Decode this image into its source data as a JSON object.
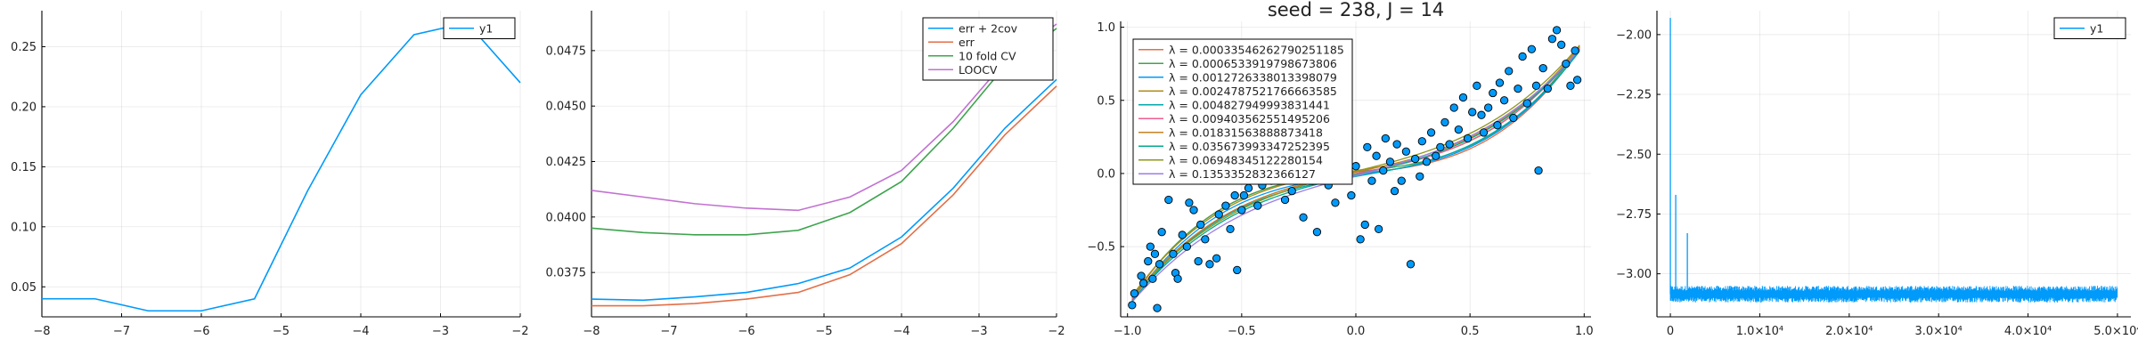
{
  "chart_data": [
    {
      "type": "line",
      "xlim": [
        -8,
        -2
      ],
      "ylim": [
        0.025,
        0.28
      ],
      "xticks": [
        -8,
        -7,
        -6,
        -5,
        -4,
        -3,
        -2
      ],
      "xtick_labels": [
        "−8",
        "−7",
        "−6",
        "−5",
        "−4",
        "−3",
        "−2"
      ],
      "yticks": [
        0.05,
        0.1,
        0.15,
        0.2,
        0.25
      ],
      "ytick_labels": [
        "0.05",
        "0.10",
        "0.15",
        "0.20",
        "0.25"
      ],
      "grid": true,
      "legend": "top-right",
      "series": [
        {
          "name": "y1",
          "color": "#009AFA",
          "x": [
            -8,
            -7.333,
            -6.667,
            -6,
            -5.333,
            -4.667,
            -4,
            -3.333,
            -2.667,
            -2
          ],
          "y": [
            0.04,
            0.04,
            0.03,
            0.03,
            0.04,
            0.13,
            0.21,
            0.26,
            0.27,
            0.22
          ]
        }
      ]
    },
    {
      "type": "line",
      "xlim": [
        -8,
        -2
      ],
      "ylim": [
        0.0355,
        0.0493
      ],
      "xticks": [
        -8,
        -7,
        -6,
        -5,
        -4,
        -3,
        -2
      ],
      "xtick_labels": [
        "−8",
        "−7",
        "−6",
        "−5",
        "−4",
        "−3",
        "−2"
      ],
      "yticks": [
        0.0375,
        0.04,
        0.0425,
        0.045,
        0.0475
      ],
      "ytick_labels": [
        "0.0375",
        "0.0400",
        "0.0425",
        "0.0450",
        "0.0475"
      ],
      "grid": true,
      "legend": "top-right",
      "x": [
        -8,
        -7.333,
        -6.667,
        -6,
        -5.333,
        -4.667,
        -4,
        -3.333,
        -2.667,
        -2
      ],
      "series": [
        {
          "name": "err + 2cov",
          "color": "#009AFA",
          "values": [
            0.0363,
            0.03625,
            0.0364,
            0.0366,
            0.037,
            0.0377,
            0.0391,
            0.0413,
            0.044,
            0.0462
          ]
        },
        {
          "name": "err",
          "color": "#E36F47",
          "values": [
            0.036,
            0.036,
            0.0361,
            0.0363,
            0.0366,
            0.0374,
            0.0388,
            0.041,
            0.0437,
            0.0459
          ]
        },
        {
          "name": "10 fold CV",
          "color": "#3EA44E",
          "values": [
            0.0395,
            0.0393,
            0.0392,
            0.0392,
            0.0394,
            0.0402,
            0.0416,
            0.044,
            0.0468,
            0.0485
          ]
        },
        {
          "name": "LOOCV",
          "color": "#C271D2",
          "values": [
            0.0412,
            0.0409,
            0.0406,
            0.0404,
            0.0403,
            0.0409,
            0.0421,
            0.0443,
            0.047,
            0.0487
          ]
        }
      ]
    },
    {
      "type": "scatter",
      "title": "seed = 238, J = 14",
      "xlim": [
        -1.03,
        1.03
      ],
      "ylim": [
        -0.98,
        1.04
      ],
      "xticks": [
        -1.0,
        -0.5,
        0.0,
        0.5,
        1.0
      ],
      "xtick_labels": [
        "−1.0",
        "−0.5",
        "0.0",
        "0.5",
        "1.0"
      ],
      "yticks": [
        -0.5,
        0.0,
        0.5,
        1.0
      ],
      "ytick_labels": [
        "−0.5",
        "0.0",
        "0.5",
        "1.0"
      ],
      "grid": true,
      "legend": "top-left",
      "points": {
        "color": "#009AFA",
        "x": [
          -0.98,
          -0.97,
          -0.94,
          -0.93,
          -0.91,
          -0.9,
          -0.89,
          -0.88,
          -0.87,
          -0.86,
          -0.85,
          -0.82,
          -0.8,
          -0.79,
          -0.78,
          -0.76,
          -0.74,
          -0.73,
          -0.71,
          -0.69,
          -0.68,
          -0.66,
          -0.64,
          -0.61,
          -0.6,
          -0.57,
          -0.55,
          -0.53,
          -0.52,
          -0.5,
          -0.49,
          -0.47,
          -0.45,
          -0.43,
          -0.41,
          -0.39,
          -0.37,
          -0.34,
          -0.31,
          -0.3,
          -0.28,
          -0.27,
          -0.25,
          -0.23,
          -0.21,
          -0.19,
          -0.17,
          -0.16,
          -0.14,
          -0.12,
          -0.1,
          -0.09,
          -0.07,
          -0.06,
          -0.04,
          -0.02,
          0.0,
          0.02,
          0.04,
          0.05,
          0.07,
          0.09,
          0.1,
          0.12,
          0.13,
          0.15,
          0.17,
          0.18,
          0.2,
          0.22,
          0.24,
          0.26,
          0.28,
          0.29,
          0.31,
          0.33,
          0.35,
          0.37,
          0.39,
          0.41,
          0.43,
          0.45,
          0.47,
          0.49,
          0.51,
          0.53,
          0.55,
          0.56,
          0.58,
          0.6,
          0.62,
          0.63,
          0.65,
          0.67,
          0.69,
          0.71,
          0.73,
          0.75,
          0.77,
          0.79,
          0.8,
          0.82,
          0.84,
          0.86,
          0.88,
          0.9,
          0.92,
          0.94,
          0.96,
          0.97
        ],
        "y": [
          -0.9,
          -0.82,
          -0.7,
          -0.75,
          -0.6,
          -0.5,
          -0.72,
          -0.55,
          -0.92,
          -0.62,
          -0.4,
          -0.18,
          -0.55,
          -0.68,
          -0.72,
          -0.42,
          -0.5,
          -0.2,
          -0.25,
          -0.6,
          -0.35,
          -0.45,
          -0.62,
          -0.58,
          -0.28,
          -0.22,
          -0.38,
          -0.15,
          -0.66,
          -0.25,
          -0.15,
          -0.1,
          0.05,
          -0.22,
          -0.08,
          0.1,
          -0.05,
          0.0,
          -0.18,
          0.08,
          -0.12,
          0.02,
          0.05,
          -0.3,
          0.12,
          -0.05,
          -0.4,
          0.02,
          0.15,
          -0.08,
          0.05,
          -0.2,
          0.08,
          -0.02,
          0.1,
          -0.15,
          0.05,
          -0.45,
          -0.35,
          0.18,
          -0.05,
          0.12,
          -0.38,
          0.02,
          0.24,
          0.08,
          -0.12,
          0.2,
          -0.05,
          0.15,
          -0.62,
          0.1,
          -0.02,
          0.22,
          0.08,
          0.28,
          0.12,
          0.18,
          0.35,
          0.2,
          0.45,
          0.3,
          0.52,
          0.24,
          0.42,
          0.6,
          0.4,
          0.28,
          0.45,
          0.55,
          0.33,
          0.62,
          0.5,
          0.7,
          0.38,
          0.58,
          0.8,
          0.48,
          0.85,
          0.6,
          0.02,
          0.72,
          0.58,
          0.92,
          0.98,
          0.88,
          0.75,
          0.6,
          0.84,
          0.64
        ]
      },
      "lambda_curves": [
        {
          "name": "λ = 0.00033546262790251185",
          "color": "#E36F47",
          "a": 0.0,
          "b": 0.15,
          "c": 0.75
        },
        {
          "name": "λ = 0.0006533919798673806",
          "color": "#3EA44E",
          "a": 0.01,
          "b": 0.18,
          "c": 0.72
        },
        {
          "name": "λ = 0.0012726338013398079",
          "color": "#009AFA",
          "a": -0.01,
          "b": 0.21,
          "c": 0.69
        },
        {
          "name": "λ = 0.0024787521766663585",
          "color": "#AC8D18",
          "a": 0.02,
          "b": 0.24,
          "c": 0.66
        },
        {
          "name": "λ = 0.004827949993831441",
          "color": "#00A9AD",
          "a": -0.02,
          "b": 0.27,
          "c": 0.63
        },
        {
          "name": "λ = 0.009403562551495206",
          "color": "#ED5D92",
          "a": 0.0,
          "b": 0.3,
          "c": 0.6
        },
        {
          "name": "λ = 0.01831563888873418",
          "color": "#C68225",
          "a": 0.01,
          "b": 0.33,
          "c": 0.57
        },
        {
          "name": "λ = 0.035673993347252395",
          "color": "#00A98D",
          "a": -0.01,
          "b": 0.36,
          "c": 0.54
        },
        {
          "name": "λ = 0.06948345122280154",
          "color": "#8E971D",
          "a": 0.015,
          "b": 0.39,
          "c": 0.51
        },
        {
          "name": "λ = 0.1353352832366127",
          "color": "#9B7FE9",
          "a": -0.015,
          "b": 0.42,
          "c": 0.48
        }
      ]
    },
    {
      "type": "line",
      "xlim": [
        -1500,
        51500
      ],
      "ylim": [
        -3.18,
        -1.9
      ],
      "xticks": [
        0,
        10000,
        20000,
        30000,
        40000,
        50000
      ],
      "xtick_labels": [
        "0",
        "1.0×10⁴",
        "2.0×10⁴",
        "3.0×10⁴",
        "4.0×10⁴",
        "5.0×10⁴"
      ],
      "yticks": [
        -3.0,
        -2.75,
        -2.5,
        -2.25,
        -2.0
      ],
      "ytick_labels": [
        "−3.00",
        "−2.75",
        "−2.50",
        "−2.25",
        "−2.00"
      ],
      "grid": true,
      "legend": "top-right",
      "series": [
        {
          "name": "y1",
          "color": "#009AFA",
          "baseline": -3.085,
          "noise_amplitude": 0.035,
          "n_points": 50000,
          "spikes": [
            {
              "x": 0,
              "y": -1.93
            },
            {
              "x": 600,
              "y": -2.67
            },
            {
              "x": 1900,
              "y": -2.83
            }
          ]
        }
      ]
    }
  ]
}
